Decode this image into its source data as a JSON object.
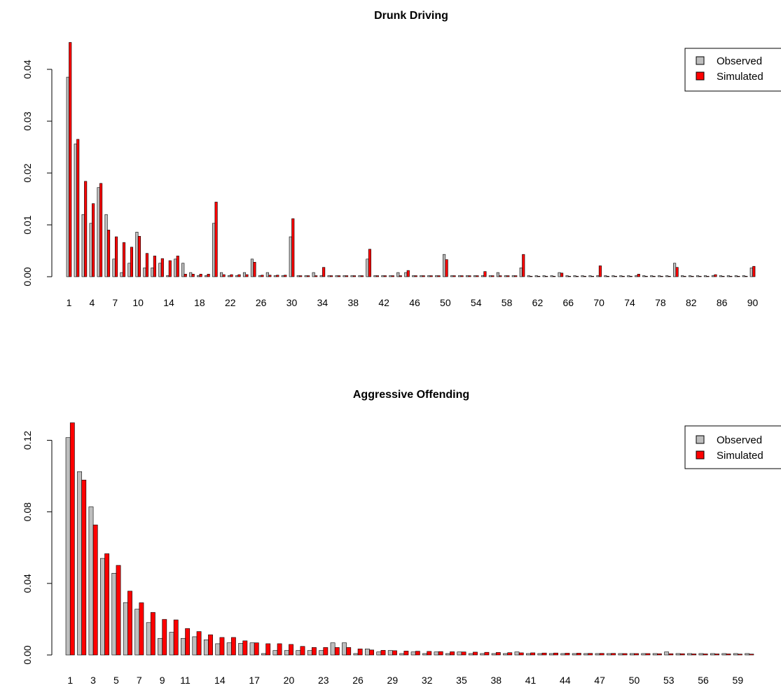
{
  "chart_data": [
    {
      "type": "bar",
      "title": "Drunk Driving",
      "xlabel": "",
      "ylabel": "",
      "ylim": [
        0,
        0.045
      ],
      "yticks": [
        "0.00",
        "0.01",
        "0.02",
        "0.03",
        "0.04"
      ],
      "ytick_values": [
        0,
        0.01,
        0.02,
        0.03,
        0.04
      ],
      "categories": [
        "1",
        "2",
        "3",
        "4",
        "5",
        "6",
        "7",
        "8",
        "9",
        "10",
        "11",
        "12",
        "13",
        "14",
        "15",
        "16",
        "17",
        "18",
        "19",
        "20",
        "21",
        "22",
        "23",
        "24",
        "25",
        "26",
        "27",
        "28",
        "29",
        "30",
        "31",
        "32",
        "33",
        "34",
        "35",
        "36",
        "37",
        "38",
        "39",
        "40",
        "41",
        "42",
        "43",
        "44",
        "45",
        "46",
        "47",
        "48",
        "49",
        "50",
        "51",
        "52",
        "53",
        "54",
        "55",
        "56",
        "57",
        "58",
        "59",
        "60",
        "61",
        "62",
        "63",
        "64",
        "65",
        "66",
        "67",
        "68",
        "69",
        "70",
        "71",
        "72",
        "73",
        "74",
        "75",
        "76",
        "77",
        "78",
        "79",
        "80",
        "81",
        "82",
        "83",
        "84",
        "85",
        "86",
        "87",
        "88",
        "89",
        "90"
      ],
      "visible_xticks": [
        "1",
        "4",
        "7",
        "10",
        "14",
        "18",
        "22",
        "26",
        "30",
        "34",
        "38",
        "42",
        "46",
        "50",
        "54",
        "58",
        "62",
        "66",
        "70",
        "74",
        "78",
        "82",
        "86",
        "90"
      ],
      "legend_position": "top-right",
      "series": [
        {
          "name": "Observed",
          "color": "#bebebe",
          "values": [
            0.0385,
            0.0256,
            0.012,
            0.0103,
            0.0172,
            0.012,
            0.0034,
            0.0008,
            0.0026,
            0.0086,
            0.0017,
            0.0017,
            0.0026,
            0.0002,
            0.0034,
            0.0026,
            0.0008,
            0.0002,
            0.0002,
            0.0103,
            0.0008,
            0.0002,
            0.0002,
            0.0008,
            0.0034,
            0.0002,
            0.0008,
            0.0002,
            0.0002,
            0.0077,
            0.0002,
            0.0002,
            0.0008,
            0.0002,
            0.0002,
            0.0002,
            0.0002,
            0.0002,
            0.0002,
            0.0034,
            0.0002,
            0.0002,
            0.0002,
            0.0008,
            0.0008,
            0.0002,
            0.0002,
            0.0002,
            0.0002,
            0.0043,
            0.0002,
            0.0002,
            0.0002,
            0.0002,
            0.0002,
            0.0002,
            0.0008,
            0.0002,
            0.0002,
            0.0017,
            0.0002,
            0.0002,
            0.0002,
            0.0002,
            0.0008,
            0.0002,
            0.0002,
            0.0002,
            0.0002,
            0.0002,
            0.0002,
            0.0002,
            0.0002,
            0.0002,
            0.0002,
            0.0002,
            0.0002,
            0.0002,
            0.0002,
            0.0026,
            0.0002,
            0.0002,
            0.0002,
            0.0002,
            0.0002,
            0.0002,
            0.0002,
            0.0002,
            0.0002,
            0.0017
          ]
        },
        {
          "name": "Simulated",
          "color": "#ff0000",
          "values": [
            0.0452,
            0.0265,
            0.0184,
            0.0141,
            0.018,
            0.009,
            0.0077,
            0.0066,
            0.0057,
            0.0078,
            0.0045,
            0.004,
            0.0035,
            0.0031,
            0.004,
            0.0005,
            0.0005,
            0.0005,
            0.0005,
            0.0144,
            0.0004,
            0.0004,
            0.0004,
            0.0004,
            0.0028,
            0.0003,
            0.0003,
            0.0003,
            0.0003,
            0.0112,
            0.0002,
            0.0002,
            0.0002,
            0.0018,
            0.0002,
            0.0002,
            0.0002,
            0.0002,
            0.0002,
            0.0053,
            0.0002,
            0.0002,
            0.0002,
            0.0002,
            0.0012,
            0.0002,
            0.0002,
            0.0002,
            0.0002,
            0.0033,
            0.0002,
            0.0002,
            0.0002,
            0.0002,
            0.001,
            0.0002,
            0.0002,
            0.0002,
            0.0002,
            0.0043,
            0.0001,
            0.0001,
            0.0001,
            0.0001,
            0.0007,
            0.0001,
            0.0001,
            0.0001,
            0.0001,
            0.0021,
            0.0001,
            0.0001,
            0.0001,
            0.0001,
            0.0005,
            0.0001,
            0.0001,
            0.0001,
            0.0001,
            0.0018,
            0.0001,
            0.0001,
            0.0001,
            0.0001,
            0.0004,
            0.0001,
            0.0001,
            0.0001,
            0.0001,
            0.002
          ]
        }
      ]
    },
    {
      "type": "bar",
      "title": "Aggressive Offending",
      "xlabel": "",
      "ylabel": "",
      "ylim": [
        0,
        0.13
      ],
      "yticks": [
        "0.00",
        "0.04",
        "0.08",
        "0.12"
      ],
      "ytick_values": [
        0,
        0.04,
        0.08,
        0.12
      ],
      "categories": [
        "1",
        "2",
        "3",
        "4",
        "5",
        "6",
        "7",
        "8",
        "9",
        "10",
        "11",
        "12",
        "13",
        "14",
        "15",
        "16",
        "17",
        "18",
        "19",
        "20",
        "21",
        "22",
        "23",
        "24",
        "25",
        "26",
        "27",
        "28",
        "29",
        "30",
        "31",
        "32",
        "33",
        "34",
        "35",
        "36",
        "37",
        "38",
        "39",
        "40",
        "41",
        "42",
        "43",
        "44",
        "45",
        "46",
        "47",
        "48",
        "49",
        "50",
        "51",
        "52",
        "53",
        "54",
        "55",
        "56",
        "57",
        "58",
        "59",
        "60"
      ],
      "visible_xticks": [
        "1",
        "3",
        "5",
        "7",
        "9",
        "11",
        "14",
        "17",
        "20",
        "23",
        "26",
        "29",
        "32",
        "35",
        "38",
        "41",
        "44",
        "47",
        "50",
        "53",
        "56",
        "59"
      ],
      "legend_position": "top-right",
      "series": [
        {
          "name": "Observed",
          "color": "#bebebe",
          "values": [
            0.1215,
            0.1025,
            0.0828,
            0.054,
            0.0457,
            0.0293,
            0.0256,
            0.0181,
            0.0093,
            0.0127,
            0.0093,
            0.0102,
            0.0085,
            0.0063,
            0.0068,
            0.0065,
            0.0068,
            0.0008,
            0.0025,
            0.0025,
            0.0025,
            0.0025,
            0.0025,
            0.0068,
            0.0068,
            0.0008,
            0.0034,
            0.0017,
            0.0025,
            0.0008,
            0.0017,
            0.0008,
            0.0017,
            0.0008,
            0.0017,
            0.0008,
            0.0008,
            0.0008,
            0.0008,
            0.0017,
            0.0008,
            0.0008,
            0.0008,
            0.0008,
            0.0008,
            0.0008,
            0.0008,
            0.0008,
            0.0008,
            0.0008,
            0.0008,
            0.0008,
            0.0017,
            0.0008,
            0.0008,
            0.0008,
            0.0008,
            0.0008,
            0.0008,
            0.0008
          ]
        },
        {
          "name": "Simulated",
          "color": "#ff0000",
          "values": [
            0.1298,
            0.0978,
            0.0727,
            0.0566,
            0.0501,
            0.0357,
            0.0292,
            0.0238,
            0.0199,
            0.0196,
            0.0148,
            0.0131,
            0.0113,
            0.0098,
            0.0098,
            0.0079,
            0.0068,
            0.0063,
            0.0063,
            0.0059,
            0.0048,
            0.0042,
            0.0042,
            0.0042,
            0.0042,
            0.0034,
            0.0028,
            0.0026,
            0.0024,
            0.0022,
            0.0021,
            0.002,
            0.0019,
            0.0018,
            0.0017,
            0.0016,
            0.0015,
            0.0014,
            0.0013,
            0.0012,
            0.0012,
            0.0011,
            0.0011,
            0.001,
            0.001,
            0.0009,
            0.0009,
            0.0009,
            0.0008,
            0.0008,
            0.0008,
            0.0007,
            0.0007,
            0.0007,
            0.0006,
            0.0006,
            0.0006,
            0.0006,
            0.0005,
            0.0005
          ]
        }
      ]
    }
  ]
}
